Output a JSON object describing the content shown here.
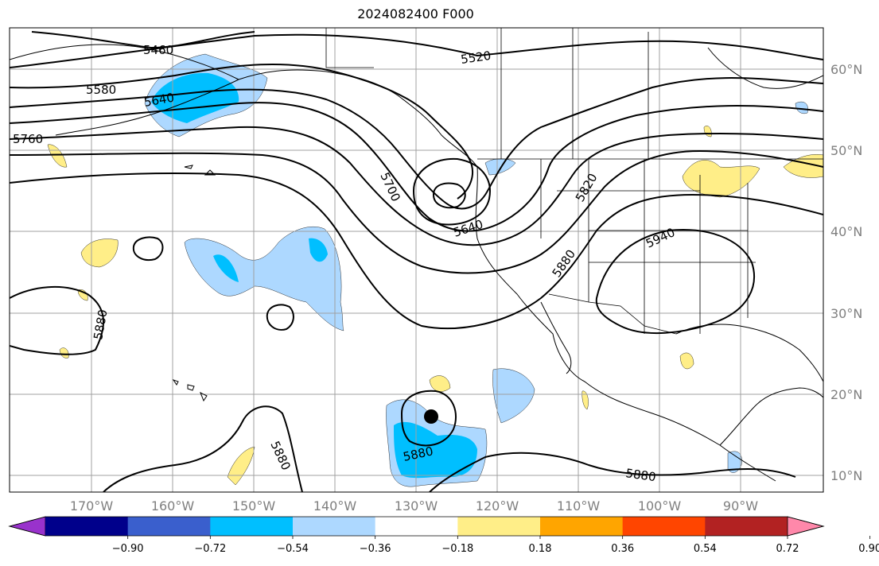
{
  "title": "2024082400 F000",
  "lat_labels": [
    "60°N",
    "50°N",
    "40°N",
    "30°N",
    "20°N",
    "10°N"
  ],
  "lon_labels": [
    "170°W",
    "160°W",
    "150°W",
    "140°W",
    "130°W",
    "120°W",
    "110°W",
    "100°W",
    "90°W"
  ],
  "colorbar": {
    "ticks": [
      "−0.90",
      "−0.72",
      "−0.54",
      "−0.36",
      "−0.18",
      "0.18",
      "0.36",
      "0.54",
      "0.72",
      "0.90"
    ],
    "colors": [
      "#9932cc",
      "#00008b",
      "#3a5fcd",
      "#00bfff",
      "#add8ff",
      "#ffffff",
      "#ffee88",
      "#ffa500",
      "#ff4500",
      "#b22222",
      "#ff88aa"
    ]
  },
  "contour_labels": [
    "5460",
    "5520",
    "5580",
    "5640",
    "5760",
    "5700",
    "5820",
    "5640",
    "5940",
    "5880",
    "5880",
    "5880",
    "5880",
    "5880",
    "5880"
  ],
  "colors": {
    "shade_light_blue": "#add8ff",
    "shade_blue": "#00bfff",
    "shade_yellow": "#ffee88",
    "grid": "#a0a0a0"
  }
}
